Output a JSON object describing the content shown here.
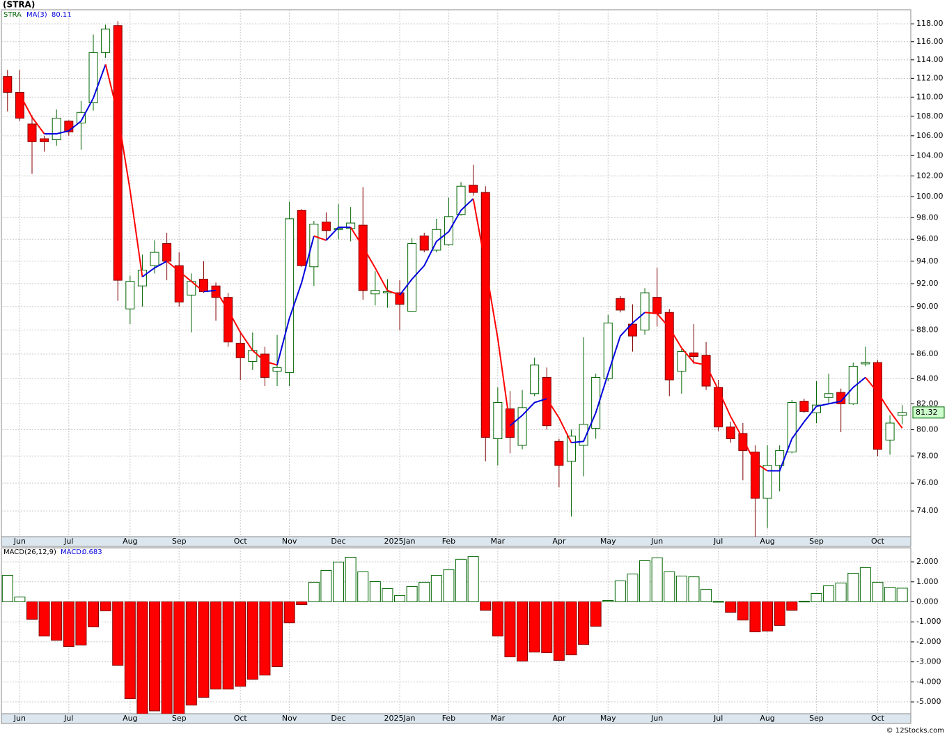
{
  "chart_data": [
    {
      "type": "candlestick",
      "title": "(STRA)",
      "series_name": "STRA",
      "up_color": "#006400",
      "down_color": "#ff0000",
      "open": [
        112.2,
        110.5,
        107.2,
        105.7,
        105.6,
        107.5,
        107.3,
        109.4,
        114.8,
        117.8,
        89.8,
        91.8,
        93.6,
        95.6,
        93.6,
        91.0,
        92.4,
        91.8,
        90.8,
        86.9,
        85.4,
        86.0,
        84.6,
        84.5,
        98.7,
        93.5,
        97.6,
        96.9,
        97.0,
        97.3,
        91.1,
        91.2,
        91.2,
        89.6,
        96.3,
        95.0,
        95.5,
        98.3,
        101.1,
        100.4,
        79.3,
        81.6,
        78.8,
        82.8,
        84.1,
        79.1,
        77.6,
        78.8,
        80.1,
        84.0,
        90.7,
        88.5,
        88.0,
        90.8,
        89.5,
        84.6,
        86.1,
        85.9,
        83.3,
        80.2,
        79.7,
        78.3,
        74.9,
        77.3,
        78.3,
        82.2,
        81.3,
        82.5,
        82.9,
        82.0,
        85.2,
        85.3,
        79.2,
        81.1
      ],
      "high": [
        112.9,
        112.9,
        108.1,
        106.0,
        108.7,
        107.6,
        109.6,
        116.8,
        117.9,
        118.3,
        92.7,
        94.6,
        95.9,
        96.6,
        94.8,
        92.9,
        94.0,
        92.1,
        91.2,
        87.9,
        87.8,
        86.6,
        87.6,
        99.5,
        98.8,
        97.7,
        98.5,
        99.3,
        99.0,
        100.9,
        93.1,
        92.4,
        92.3,
        96.1,
        96.6,
        97.9,
        99.9,
        101.4,
        103.1,
        101.0,
        83.3,
        83.0,
        83.1,
        85.7,
        84.9,
        79.3,
        80.0,
        87.4,
        84.4,
        89.3,
        90.9,
        90.2,
        91.6,
        93.4,
        89.8,
        86.4,
        88.5,
        87.0,
        83.9,
        80.6,
        80.5,
        78.8,
        78.8,
        78.8,
        82.3,
        82.4,
        83.8,
        84.4,
        83.2,
        85.3,
        86.6,
        85.5,
        81.1,
        81.9
      ],
      "low": [
        108.5,
        107.5,
        102.2,
        104.4,
        105.0,
        106.0,
        104.6,
        108.6,
        114.2,
        90.5,
        88.5,
        90.0,
        92.9,
        92.3,
        90.0,
        87.8,
        91.2,
        88.8,
        86.6,
        83.9,
        84.7,
        83.4,
        83.4,
        83.4,
        93.5,
        91.8,
        96.0,
        96.0,
        95.8,
        90.6,
        90.1,
        89.9,
        88.0,
        89.6,
        94.8,
        94.8,
        95.4,
        98.2,
        100.1,
        77.6,
        77.3,
        78.2,
        78.5,
        82.6,
        80.0,
        75.7,
        73.6,
        76.5,
        79.3,
        83.8,
        89.5,
        86.2,
        87.6,
        88.3,
        82.6,
        82.8,
        85.2,
        83.1,
        79.9,
        79.0,
        76.2,
        72.2,
        72.8,
        75.4,
        78.2,
        81.3,
        80.5,
        82.0,
        79.8,
        81.9,
        85.0,
        78.0,
        78.1,
        80.4
      ],
      "close": [
        110.5,
        107.8,
        105.4,
        105.4,
        107.8,
        106.4,
        108.4,
        114.8,
        117.4,
        92.3,
        92.2,
        93.2,
        94.8,
        94.0,
        90.4,
        92.2,
        91.3,
        90.8,
        87.0,
        85.7,
        86.3,
        84.1,
        84.9,
        97.9,
        93.6,
        97.4,
        96.8,
        97.0,
        97.5,
        91.4,
        91.4,
        91.3,
        90.2,
        95.6,
        95.0,
        96.9,
        98.1,
        101.0,
        100.4,
        79.4,
        82.1,
        79.4,
        81.7,
        85.1,
        80.3,
        77.3,
        79.5,
        80.4,
        84.1,
        88.6,
        89.7,
        87.5,
        91.2,
        89.4,
        83.9,
        86.2,
        85.8,
        83.4,
        80.2,
        79.3,
        78.4,
        74.9,
        77.3,
        78.4,
        82.1,
        81.4,
        81.9,
        82.8,
        82.0,
        85.0,
        85.3,
        78.5,
        80.5,
        81.32
      ],
      "ma": {
        "name": "MA(3)",
        "up_color": "#0000dd",
        "down_color": "#ff0000",
        "values": [
          null,
          110.3,
          107.9,
          106.2,
          106.2,
          106.5,
          107.5,
          109.9,
          113.5,
          108.2,
          100.6,
          92.6,
          93.4,
          94.0,
          93.1,
          92.2,
          91.3,
          91.4,
          89.7,
          87.8,
          86.3,
          85.4,
          85.1,
          89.0,
          92.1,
          96.3,
          95.9,
          97.1,
          97.1,
          95.3,
          93.4,
          91.4,
          91.0,
          92.4,
          93.6,
          95.8,
          96.7,
          98.7,
          99.8,
          93.6,
          87.3,
          80.3,
          81.1,
          82.1,
          82.4,
          80.9,
          79.0,
          79.1,
          81.3,
          84.4,
          87.5,
          88.6,
          89.5,
          89.4,
          88.2,
          86.5,
          85.3,
          85.1,
          83.1,
          81.0,
          79.3,
          77.5,
          76.9,
          76.9,
          79.3,
          80.6,
          81.8,
          82.0,
          82.2,
          83.3,
          84.1,
          82.9,
          81.4,
          80.11
        ]
      },
      "log_scale": true,
      "grid": true,
      "ylim": [
        72.2,
        119.6
      ],
      "yticks": [
        {
          "value": 118,
          "label": "118.00"
        },
        {
          "value": 116,
          "label": "116.00"
        },
        {
          "value": 114,
          "label": "114.00"
        },
        {
          "value": 112,
          "label": "112.00"
        },
        {
          "value": 110,
          "label": "110.00"
        },
        {
          "value": 108,
          "label": "108.00"
        },
        {
          "value": 106,
          "label": "106.00"
        },
        {
          "value": 104,
          "label": "104.00"
        },
        {
          "value": 102,
          "label": "102.00"
        },
        {
          "value": 100,
          "label": "100.00"
        },
        {
          "value": 98,
          "label": "98.00"
        },
        {
          "value": 96,
          "label": "96.00"
        },
        {
          "value": 94,
          "label": "94.00"
        },
        {
          "value": 92,
          "label": "92.00"
        },
        {
          "value": 90,
          "label": "90.00"
        },
        {
          "value": 88,
          "label": "88.00"
        },
        {
          "value": 86,
          "label": "86.00"
        },
        {
          "value": 84,
          "label": "84.00"
        },
        {
          "value": 82,
          "label": "82.00"
        },
        {
          "value": 80,
          "label": "80.00"
        },
        {
          "value": 78,
          "label": "78.00"
        },
        {
          "value": 76,
          "label": "76.00"
        },
        {
          "value": 74,
          "label": "74.00"
        }
      ],
      "xlim": [
        -0.5,
        73.7
      ],
      "xticks": [
        {
          "value": 1,
          "label": "Jun"
        },
        {
          "value": 5,
          "label": "Jul"
        },
        {
          "value": 10,
          "label": "Aug"
        },
        {
          "value": 14,
          "label": "Sep"
        },
        {
          "value": 19,
          "label": "Oct"
        },
        {
          "value": 23,
          "label": "Nov"
        },
        {
          "value": 27,
          "label": "Dec"
        },
        {
          "value": 32,
          "label": "2025Jan"
        },
        {
          "value": 36,
          "label": "Feb"
        },
        {
          "value": 40,
          "label": "Mar"
        },
        {
          "value": 45,
          "label": "Apr"
        },
        {
          "value": 49,
          "label": "May"
        },
        {
          "value": 53,
          "label": "Jun"
        },
        {
          "value": 58,
          "label": "Jul"
        },
        {
          "value": 62,
          "label": "Aug"
        },
        {
          "value": 66,
          "label": "Sep"
        },
        {
          "value": 71,
          "label": "Oct"
        }
      ]
    },
    {
      "type": "histogram",
      "name": "MACD(26,12,9)",
      "value_caption": "MACD:",
      "pos_color": "#006400",
      "neg_color": "#ff0000",
      "values": [
        1.32,
        0.24,
        -0.87,
        -1.71,
        -1.92,
        -2.23,
        -2.16,
        -1.25,
        -0.45,
        -3.17,
        -4.84,
        -5.6,
        -5.45,
        -5.6,
        -5.6,
        -5.16,
        -4.77,
        -4.36,
        -4.36,
        -4.22,
        -3.87,
        -3.66,
        -3.24,
        -1.05,
        -0.14,
        0.98,
        1.57,
        1.99,
        2.23,
        1.5,
        1.01,
        0.66,
        0.31,
        0.77,
        0.98,
        1.32,
        1.6,
        2.13,
        2.26,
        -0.42,
        -1.71,
        -2.75,
        -2.96,
        -2.51,
        -2.54,
        -2.93,
        -2.65,
        -2.13,
        -1.22,
        0.07,
        1.05,
        1.39,
        2.06,
        2.2,
        1.5,
        1.29,
        1.25,
        0.63,
        0.02,
        -0.52,
        -0.91,
        -1.5,
        -1.46,
        -1.18,
        -0.42,
        0.03,
        0.42,
        0.8,
        0.94,
        1.43,
        1.71,
        0.98,
        0.73,
        0.683
      ],
      "grid": true,
      "ylim": [
        -5.59,
        2.7
      ],
      "yticks": [
        {
          "value": 2,
          "label": "2.000"
        },
        {
          "value": 1,
          "label": "1.000"
        },
        {
          "value": 0,
          "label": "0.000"
        },
        {
          "value": -1,
          "label": "-1.000"
        },
        {
          "value": -2,
          "label": "-2.000"
        },
        {
          "value": -3,
          "label": "-3.000"
        },
        {
          "value": -4,
          "label": "-4.000"
        },
        {
          "value": -5,
          "label": "-5.000"
        }
      ]
    }
  ],
  "footer": "© 12Stocks.com"
}
